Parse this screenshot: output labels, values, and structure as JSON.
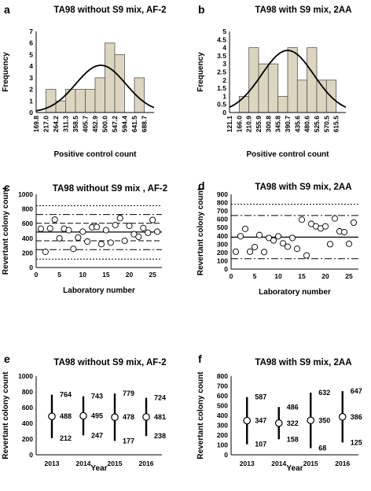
{
  "chart_data": [
    {
      "panel": "a",
      "type": "bar",
      "title": "TA98 without S9 mix, AF-2",
      "xlabel": "Positive control count",
      "ylabel": "Frequency",
      "ylim": [
        0,
        7
      ],
      "yticks": [
        0,
        1,
        2,
        3,
        4,
        5,
        6,
        7
      ],
      "categories": [
        "169.8",
        "217.0",
        "264.2",
        "311.3",
        "358.5",
        "405.7",
        "452.9",
        "500.0",
        "547.2",
        "594.4",
        "641.5",
        "688.7"
      ],
      "values": [
        0,
        2,
        1,
        2,
        2,
        2,
        3,
        6,
        5,
        0,
        3,
        0
      ],
      "fit_curve": "normal",
      "bar_color": "#dcd6c0"
    },
    {
      "panel": "b",
      "type": "bar",
      "title": "TA98 with S9 mix, 2AA",
      "xlabel": "Positive control count",
      "ylabel": "Frequency",
      "ylim": [
        0,
        5
      ],
      "yticks": [
        0,
        0.5,
        1,
        1.5,
        2,
        2.5,
        3,
        3.5,
        4,
        4.5,
        5
      ],
      "categories": [
        "121.1",
        "166.0",
        "210.9",
        "255.9",
        "300.8",
        "345.8",
        "390.7",
        "435.6",
        "480.6",
        "525.6",
        "570.5",
        "615.5"
      ],
      "values": [
        0,
        1,
        4,
        3,
        3,
        1,
        4,
        2,
        4,
        2,
        2,
        0
      ],
      "fit_curve": "normal",
      "bar_color": "#dcd6c0"
    },
    {
      "panel": "c",
      "type": "scatter",
      "title": "TA98 without S9 mix , AF-2",
      "xlabel": "Laboratory number",
      "ylabel": "Revertant colony count",
      "xlim": [
        0,
        27
      ],
      "ylim": [
        0,
        1000
      ],
      "xticks": [
        0,
        5,
        10,
        15,
        20,
        25
      ],
      "yticks": [
        0,
        200,
        400,
        600,
        800,
        1000
      ],
      "x": [
        1,
        2,
        3,
        4,
        5,
        6,
        7,
        8,
        9,
        10,
        11,
        12,
        13,
        14,
        15,
        16,
        17,
        18,
        19,
        20,
        21,
        22,
        23,
        24,
        25,
        26
      ],
      "y": [
        530,
        215,
        535,
        655,
        400,
        530,
        510,
        255,
        410,
        490,
        355,
        550,
        555,
        320,
        510,
        340,
        580,
        675,
        365,
        570,
        455,
        420,
        540,
        475,
        650,
        490
      ],
      "ref_lines": {
        "solid": [
          485
        ],
        "dashed": [
          365,
          605
        ],
        "dashdot": [
          245,
          725
        ],
        "dotted": [
          115,
          845
        ]
      }
    },
    {
      "panel": "d",
      "type": "scatter",
      "title": "TA98 with S9 mix, 2AA",
      "xlabel": "Laboratory number",
      "ylabel": "Revertant colony count",
      "xlim": [
        0,
        27
      ],
      "ylim": [
        0,
        900
      ],
      "xticks": [
        0,
        5,
        10,
        15,
        20,
        25
      ],
      "yticks": [
        0,
        100,
        200,
        300,
        400,
        500,
        600,
        700,
        800,
        900
      ],
      "x": [
        1,
        2,
        3,
        4,
        5,
        6,
        7,
        8,
        9,
        10,
        11,
        12,
        13,
        14,
        15,
        16,
        17,
        18,
        19,
        20,
        21,
        22,
        23,
        24,
        25,
        26
      ],
      "y": [
        210,
        395,
        485,
        210,
        265,
        410,
        205,
        375,
        345,
        395,
        310,
        270,
        375,
        245,
        595,
        165,
        545,
        515,
        490,
        515,
        300,
        610,
        455,
        445,
        305,
        560
      ],
      "ref_lines": {
        "solid": [
          385
        ],
        "dashdot": [
          125,
          645
        ],
        "dotted": [
          780
        ]
      }
    },
    {
      "panel": "e",
      "type": "scatter",
      "title": "TA98 without S9 mix, AF-2",
      "xlabel": "Year",
      "ylabel": "Revertant colony count",
      "ylim": [
        0,
        1000
      ],
      "yticks": [
        0,
        200,
        400,
        600,
        800,
        1000
      ],
      "categories": [
        "2013",
        "2014",
        "2015",
        "2016"
      ],
      "mean": [
        488,
        495,
        478,
        481
      ],
      "upper": [
        764,
        743,
        779,
        724
      ],
      "lower": [
        212,
        247,
        177,
        238
      ]
    },
    {
      "panel": "f",
      "type": "scatter",
      "title": "TA98 with S9 mix, 2AA",
      "xlabel": "Year",
      "ylabel": "Revertant colony count",
      "ylim": [
        0,
        800
      ],
      "yticks": [
        0,
        100,
        200,
        300,
        400,
        500,
        600,
        700,
        800
      ],
      "categories": [
        "2013",
        "2014",
        "2015",
        "2016"
      ],
      "mean": [
        347,
        322,
        350,
        386
      ],
      "upper": [
        587,
        486,
        632,
        647
      ],
      "lower": [
        107,
        158,
        68,
        125
      ]
    }
  ]
}
